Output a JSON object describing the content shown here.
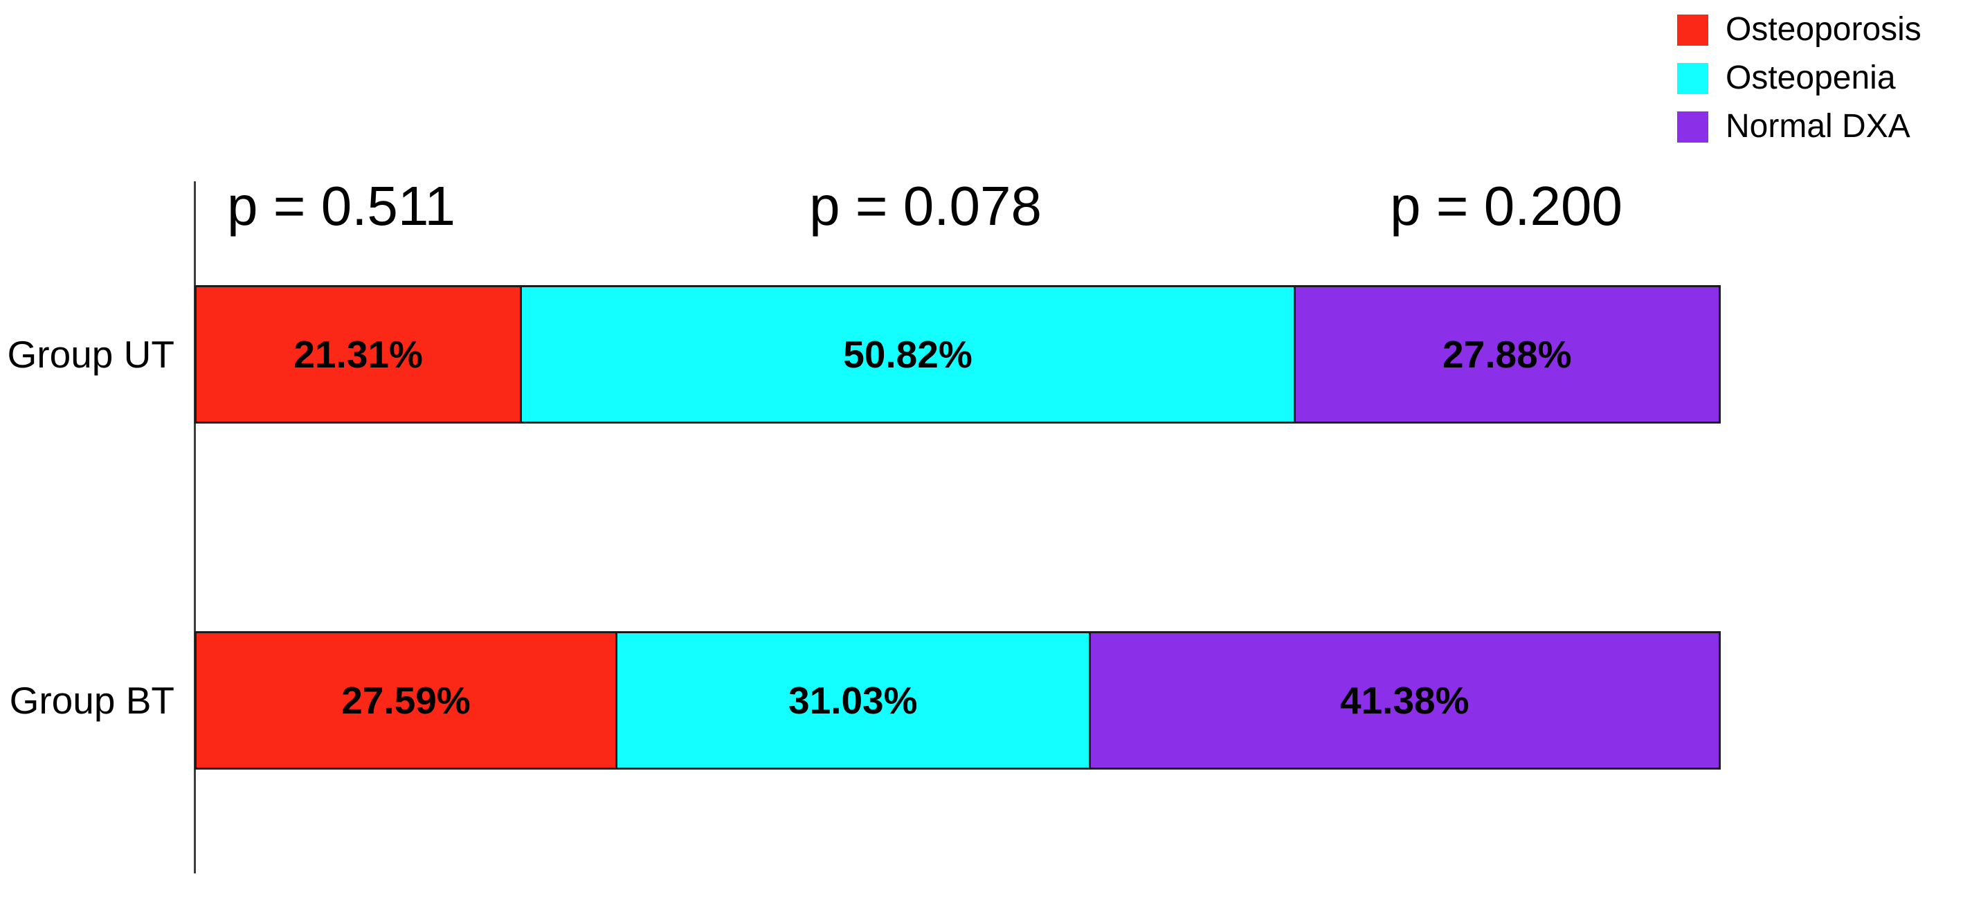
{
  "figure": {
    "background": "#ffffff",
    "axis_color": "#3d3d3d",
    "bar_border_color": "#1b1b1b",
    "text_color": "#000000"
  },
  "chart_data": {
    "type": "bar",
    "orientation": "horizontal",
    "stacked": true,
    "unit": "percent",
    "xlim": [
      0,
      100
    ],
    "grid": false,
    "legend_position": "top-right",
    "categories": [
      "Group UT",
      "Group BT"
    ],
    "series": [
      {
        "name": "Osteoporosis",
        "color": "#fb2817",
        "values": [
          21.31,
          27.59
        ]
      },
      {
        "name": "Osteopenia",
        "color": "#13ffff",
        "values": [
          50.82,
          31.03
        ]
      },
      {
        "name": "Normal DXA",
        "color": "#8b2fe8",
        "values": [
          27.88,
          41.38
        ]
      }
    ],
    "value_labels": [
      [
        "21.31%",
        "50.82%",
        "27.88%"
      ],
      [
        "27.59%",
        "31.03%",
        "41.38%"
      ]
    ],
    "p_values": [
      {
        "label": "p = 0.511"
      },
      {
        "label": "p = 0.078"
      },
      {
        "label": "p = 0.200"
      }
    ]
  }
}
